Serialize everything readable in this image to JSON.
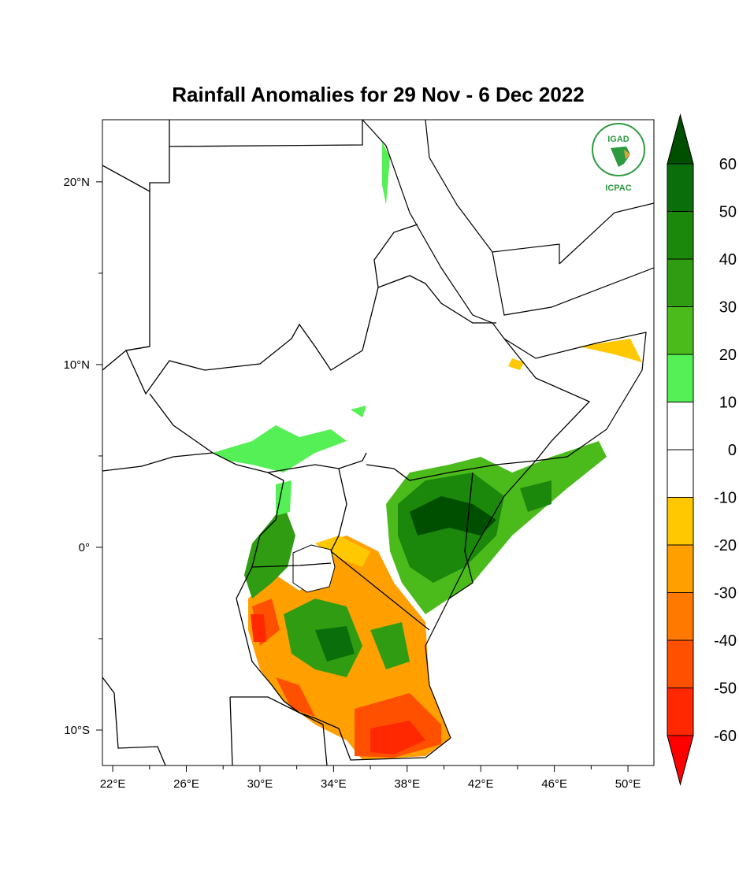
{
  "title": "Rainfall Anomalies for 29 Nov - 6 Dec 2022",
  "logo": {
    "top_text": "IGAD",
    "bottom_text": "ICPAC"
  },
  "axes": {
    "lon_labels": [
      "22°E",
      "26°E",
      "30°E",
      "34°E",
      "38°E",
      "42°E",
      "46°E",
      "50°E"
    ],
    "lon_values": [
      22,
      26,
      30,
      34,
      38,
      42,
      46,
      50
    ],
    "lat_labels": [
      "20°N",
      "10°N",
      "0°",
      "10°S"
    ],
    "lat_values": [
      20,
      10,
      0,
      -10
    ],
    "lon_range": [
      21.44,
      51.41
    ],
    "lat_range": [
      -11.94,
      23.4
    ]
  },
  "colorbar": {
    "labels": [
      "60",
      "50",
      "40",
      "30",
      "20",
      "10",
      "0",
      "-10",
      "-20",
      "-30",
      "-40",
      "-50",
      "-60"
    ],
    "colors": [
      "#0a6e0a",
      "#1b870b",
      "#2f9c12",
      "#4bbb1c",
      "#55f055",
      "#ffffff",
      "#ffffff",
      "#ffc800",
      "#ffa000",
      "#ff7800",
      "#ff5000",
      "#ff2800"
    ],
    "over_color": "#004f00",
    "under_color": "#ff0000"
  }
}
